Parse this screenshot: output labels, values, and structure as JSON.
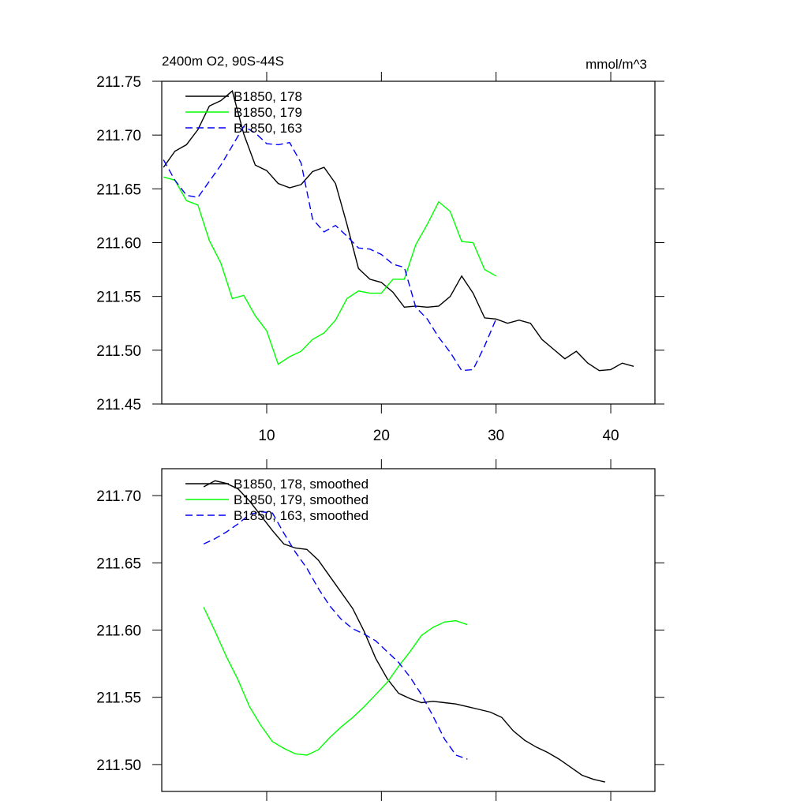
{
  "chart_data": [
    {
      "type": "line",
      "title": "2400m O2, 90S-44S",
      "units": "mmol/m^3",
      "xlim": [
        0.85,
        43.85
      ],
      "xticks": [
        10,
        20,
        30,
        40
      ],
      "ylim": [
        211.45,
        211.75
      ],
      "yticks": [
        {
          "value": 211.45,
          "label": "211.45"
        },
        {
          "value": 211.5,
          "label": "211.50"
        },
        {
          "value": 211.55,
          "label": "211.55"
        },
        {
          "value": 211.6,
          "label": "211.60"
        },
        {
          "value": 211.65,
          "label": "211.65"
        },
        {
          "value": 211.7,
          "label": "211.70"
        },
        {
          "value": 211.75,
          "label": "211.75"
        }
      ],
      "series": [
        {
          "name": "B1850, 178",
          "color": "#000000",
          "dash": false,
          "x": [
            1,
            2,
            3,
            4,
            5,
            6,
            7,
            8,
            9,
            10,
            11,
            12,
            13,
            14,
            15,
            16,
            17,
            18,
            19,
            20,
            21,
            22,
            23,
            24,
            25,
            26,
            27,
            28,
            29,
            30,
            31,
            32,
            33,
            34,
            35,
            36,
            37,
            38,
            39,
            40,
            41,
            42
          ],
          "values": [
            211.67,
            211.685,
            211.691,
            211.705,
            211.727,
            211.732,
            211.741,
            211.701,
            211.672,
            211.667,
            211.655,
            211.651,
            211.654,
            211.666,
            211.67,
            211.655,
            211.617,
            211.576,
            211.566,
            211.563,
            211.554,
            211.54,
            211.541,
            211.54,
            211.541,
            211.55,
            211.569,
            211.553,
            211.53,
            211.529,
            211.525,
            211.528,
            211.525,
            211.51,
            211.501,
            211.492,
            211.499,
            211.488,
            211.481,
            211.482,
            211.488,
            211.485
          ]
        },
        {
          "name": "B1850, 179",
          "color": "#00ff00",
          "dash": false,
          "x": [
            1,
            2,
            3,
            4,
            5,
            6,
            7,
            8,
            9,
            10,
            11,
            12,
            13,
            14,
            15,
            16,
            17,
            18,
            19,
            20,
            21,
            22,
            23,
            24,
            25,
            26,
            27,
            28,
            29,
            30
          ],
          "values": [
            211.661,
            211.658,
            211.639,
            211.635,
            211.602,
            211.581,
            211.548,
            211.551,
            211.532,
            211.518,
            211.487,
            211.494,
            211.499,
            211.51,
            211.516,
            211.528,
            211.548,
            211.555,
            211.553,
            211.553,
            211.566,
            211.566,
            211.598,
            211.617,
            211.638,
            211.629,
            211.601,
            211.6,
            211.575,
            211.569
          ]
        },
        {
          "name": "B1850, 163",
          "color": "#0000ff",
          "dash": true,
          "x": [
            1,
            2,
            3,
            4,
            5,
            6,
            7,
            8,
            9,
            10,
            11,
            12,
            13,
            14,
            15,
            16,
            17,
            18,
            19,
            20,
            21,
            22,
            23,
            24,
            25,
            26,
            27,
            28,
            29,
            30
          ],
          "values": [
            211.677,
            211.658,
            211.644,
            211.642,
            211.657,
            211.672,
            211.69,
            211.708,
            211.702,
            211.692,
            211.691,
            211.693,
            211.674,
            211.622,
            211.61,
            211.616,
            211.606,
            211.595,
            211.594,
            211.589,
            211.58,
            211.577,
            211.54,
            211.529,
            211.512,
            211.498,
            211.481,
            211.482,
            211.504,
            211.529
          ]
        }
      ]
    },
    {
      "type": "line",
      "xlim": [
        0.85,
        43.85
      ],
      "xticks": [
        10,
        20,
        30,
        40
      ],
      "ylim": [
        211.48,
        211.72
      ],
      "yticks": [
        {
          "value": 211.5,
          "label": "211.50"
        },
        {
          "value": 211.55,
          "label": "211.55"
        },
        {
          "value": 211.6,
          "label": "211.60"
        },
        {
          "value": 211.65,
          "label": "211.65"
        },
        {
          "value": 211.7,
          "label": "211.70"
        }
      ],
      "series": [
        {
          "name": "B1850, 178, smoothed",
          "color": "#000000",
          "dash": false,
          "x": [
            4.5,
            5.5,
            6.5,
            7.5,
            8.5,
            9.5,
            10.5,
            11.5,
            12.5,
            13.5,
            14.5,
            15.5,
            16.5,
            17.5,
            18.5,
            19.5,
            20.5,
            21.5,
            22.5,
            23.5,
            24.5,
            25.5,
            26.5,
            27.5,
            28.5,
            29.5,
            30.5,
            31.5,
            32.5,
            33.5,
            34.5,
            35.5,
            36.5,
            37.5,
            38.5,
            39.5
          ],
          "values": [
            211.7065,
            211.711,
            211.709,
            211.705,
            211.696,
            211.685,
            211.674,
            211.664,
            211.661,
            211.66,
            211.652,
            211.64,
            211.628,
            211.616,
            211.599,
            211.579,
            211.564,
            211.553,
            211.549,
            211.546,
            211.547,
            211.546,
            211.545,
            211.543,
            211.541,
            211.539,
            211.535,
            211.525,
            211.518,
            211.513,
            211.509,
            211.504,
            211.498,
            211.492,
            211.489,
            211.487
          ]
        },
        {
          "name": "B1850, 179, smoothed",
          "color": "#00ff00",
          "dash": false,
          "x": [
            4.5,
            5.5,
            6.5,
            7.5,
            8.5,
            9.5,
            10.5,
            11.5,
            12.5,
            13.5,
            14.5,
            15.5,
            16.5,
            17.5,
            18.5,
            19.5,
            20.5,
            21.5,
            22.5,
            23.5,
            24.5,
            25.5,
            26.5,
            27.5
          ],
          "values": [
            211.617,
            211.599,
            211.58,
            211.563,
            211.543,
            211.529,
            211.517,
            211.512,
            211.508,
            211.507,
            211.511,
            211.52,
            211.528,
            211.535,
            211.543,
            211.552,
            211.561,
            211.573,
            211.584,
            211.596,
            211.602,
            211.606,
            211.607,
            211.604
          ]
        },
        {
          "name": "B1850, 163, smoothed",
          "color": "#0000ff",
          "dash": true,
          "x": [
            4.5,
            5.5,
            6.5,
            7.5,
            8.5,
            9.5,
            10.5,
            11.5,
            12.5,
            13.5,
            14.5,
            15.5,
            16.5,
            17.5,
            18.5,
            19.5,
            20.5,
            21.5,
            22.5,
            23.5,
            24.5,
            25.5,
            26.5,
            27.5
          ],
          "values": [
            211.664,
            211.668,
            211.673,
            211.679,
            211.686,
            211.688,
            211.687,
            211.672,
            211.658,
            211.646,
            211.631,
            211.618,
            211.608,
            211.601,
            211.597,
            211.592,
            211.584,
            211.576,
            211.565,
            211.552,
            211.536,
            211.519,
            211.507,
            211.504
          ]
        }
      ]
    }
  ]
}
